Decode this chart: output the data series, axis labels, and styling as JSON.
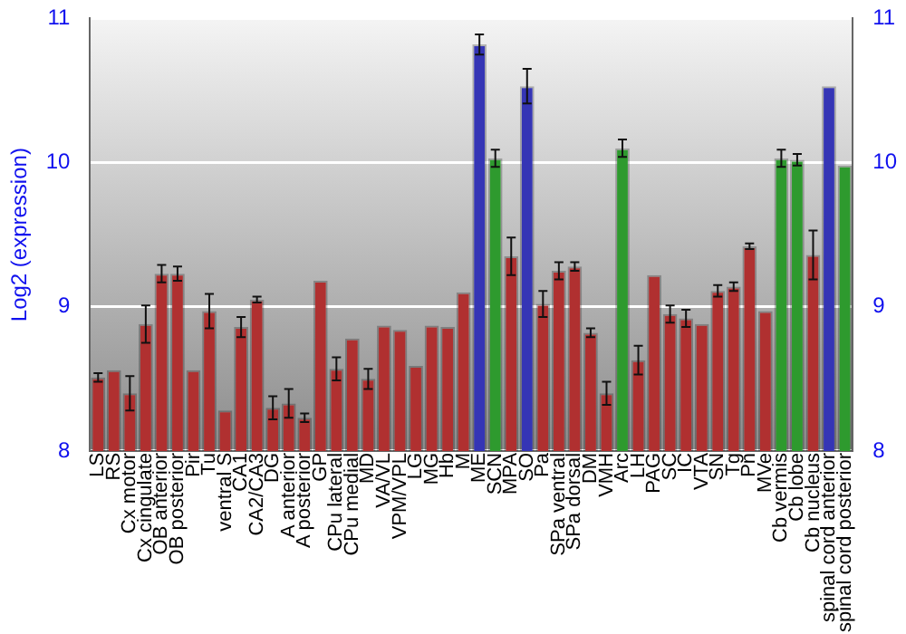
{
  "chart_data": {
    "type": "bar",
    "ylabel": "Log2 (expression)",
    "categories": [
      "LS",
      "RS",
      "Cx motor",
      "Cx cingulate",
      "OB anterior",
      "OB posterior",
      "Pir",
      "Tu",
      "ventral S",
      "CA1",
      "CA2/CA3",
      "DG",
      "A anterior",
      "A posterior",
      "GP",
      "CPu lateral",
      "CPu medial",
      "MD",
      "VA/VL",
      "VPM/VPL",
      "LG",
      "MG",
      "Hb",
      "M",
      "ME",
      "SCN",
      "MPA",
      "SO",
      "Pa",
      "SPa ventral",
      "SPa dorsal",
      "DM",
      "VMH",
      "Arc",
      "LH",
      "PAG",
      "SC",
      "IC",
      "VTA",
      "SN",
      "Tg",
      "Pn",
      "MVe",
      "Cb vermis",
      "Cb lobe",
      "Cb nucleus",
      "spinal cord anterior",
      "spinal cord posterior"
    ],
    "values": [
      8.51,
      8.56,
      8.4,
      8.88,
      9.23,
      9.23,
      8.56,
      8.97,
      8.28,
      8.86,
      9.05,
      8.3,
      8.33,
      8.23,
      9.18,
      8.57,
      8.78,
      8.5,
      8.87,
      8.84,
      8.59,
      8.87,
      8.86,
      9.1,
      10.82,
      10.03,
      9.35,
      10.53,
      9.02,
      9.25,
      9.28,
      8.82,
      8.4,
      10.1,
      8.63,
      9.22,
      8.95,
      8.92,
      8.88,
      9.11,
      9.14,
      9.42,
      8.97,
      10.03,
      10.02,
      9.36,
      10.53,
      9.98
    ],
    "errors": [
      0.03,
      null,
      0.12,
      0.13,
      0.06,
      0.05,
      null,
      0.12,
      null,
      0.07,
      0.02,
      0.08,
      0.1,
      0.03,
      null,
      0.08,
      null,
      0.07,
      null,
      null,
      null,
      null,
      null,
      null,
      0.07,
      0.06,
      0.13,
      0.12,
      0.09,
      0.06,
      0.03,
      0.03,
      0.08,
      0.06,
      0.1,
      null,
      0.06,
      0.06,
      null,
      0.04,
      0.03,
      0.02,
      null,
      0.06,
      0.04,
      0.17,
      null,
      null
    ],
    "colors": [
      "#b03030",
      "#b03030",
      "#b03030",
      "#b03030",
      "#b03030",
      "#b03030",
      "#b03030",
      "#b03030",
      "#b03030",
      "#b03030",
      "#b03030",
      "#b03030",
      "#b03030",
      "#b03030",
      "#b03030",
      "#b03030",
      "#b03030",
      "#b03030",
      "#b03030",
      "#b03030",
      "#b03030",
      "#b03030",
      "#b03030",
      "#b03030",
      "#3535b5",
      "#2e9a2e",
      "#b03030",
      "#3535b5",
      "#b03030",
      "#b03030",
      "#b03030",
      "#b03030",
      "#b03030",
      "#2e9a2e",
      "#b03030",
      "#b03030",
      "#b03030",
      "#b03030",
      "#b03030",
      "#b03030",
      "#b03030",
      "#b03030",
      "#b03030",
      "#2e9a2e",
      "#2e9a2e",
      "#b03030",
      "#3535b5",
      "#2e9a2e"
    ],
    "ylim": [
      8,
      11
    ],
    "yticks": [
      8,
      9,
      10,
      11
    ],
    "y2lim": [
      8,
      11
    ],
    "y2ticks": [
      8,
      9,
      10,
      11
    ],
    "grid": "y",
    "legend": false
  }
}
